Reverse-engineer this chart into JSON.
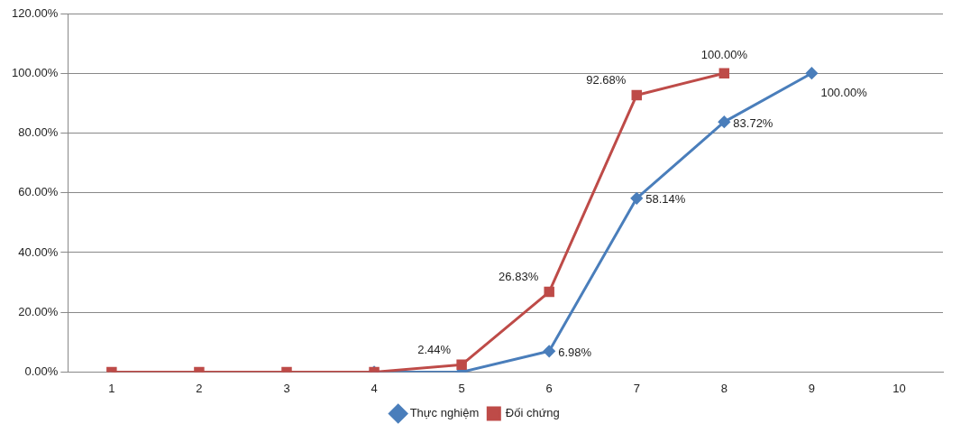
{
  "chart_data": {
    "type": "line",
    "categories": [
      "1",
      "2",
      "3",
      "4",
      "5",
      "6",
      "7",
      "8",
      "9",
      "10"
    ],
    "ylim": [
      0,
      120
    ],
    "yticks": [
      {
        "value": 0,
        "label": "0.00%"
      },
      {
        "value": 20,
        "label": "20.00%"
      },
      {
        "value": 40,
        "label": "40.00%"
      },
      {
        "value": 60,
        "label": "60.00%"
      },
      {
        "value": 80,
        "label": "80.00%"
      },
      {
        "value": 100,
        "label": "100.00%"
      },
      {
        "value": 120,
        "label": "120.00%"
      }
    ],
    "grid": "y",
    "legend": "bottom",
    "line_style": "solid",
    "series": [
      {
        "name": "Thực nghiệm",
        "color": "#4a7ebb",
        "marker": "diamond",
        "values": [
          null,
          null,
          null,
          0,
          0,
          6.98,
          58.14,
          83.72,
          100,
          null
        ],
        "value_labels": [
          null,
          null,
          null,
          null,
          null,
          "6.98%",
          "58.14%",
          "83.72%",
          "100.00%",
          null
        ]
      },
      {
        "name": "Đối chứng",
        "color": "#be4b48",
        "marker": "square",
        "values": [
          0,
          0,
          0,
          0,
          2.44,
          26.83,
          92.68,
          100,
          null,
          null
        ],
        "value_labels": [
          null,
          null,
          null,
          null,
          "2.44%",
          "26.83%",
          "92.68%",
          "100.00%",
          null,
          null
        ]
      }
    ]
  }
}
